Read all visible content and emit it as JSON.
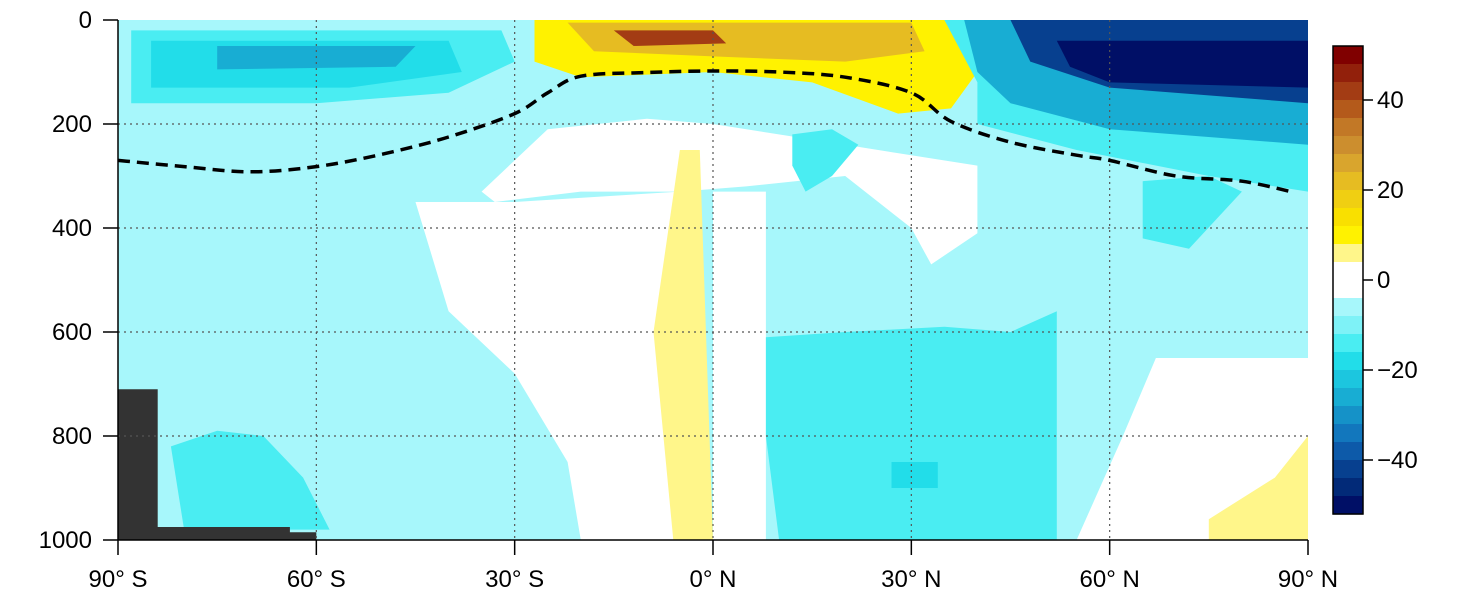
{
  "chart_data": {
    "type": "heatmap",
    "title": "",
    "xlabel": "",
    "ylabel": "",
    "x_axis": {
      "ticks": [
        -90,
        -60,
        -30,
        0,
        30,
        60,
        90
      ],
      "tick_labels": [
        "90° S",
        "60° S",
        "30° S",
        "0° N",
        "30° N",
        "60° N",
        "90° N"
      ],
      "range": [
        -90,
        90
      ]
    },
    "y_axis": {
      "ticks": [
        0,
        200,
        400,
        600,
        800,
        1000
      ],
      "tick_labels": [
        "0",
        "200",
        "400",
        "600",
        "800",
        "1000"
      ],
      "range": [
        0,
        1000
      ],
      "inverted": true
    },
    "colorbar": {
      "range": [
        -52,
        52
      ],
      "ticks": [
        40,
        20,
        0,
        -20,
        -40
      ],
      "tick_labels": [
        "40",
        "20",
        "0",
        "−20",
        "−40"
      ],
      "levels": [
        {
          "min": 48,
          "max": 52,
          "color": "#800000"
        },
        {
          "min": 44,
          "max": 48,
          "color": "#92200b"
        },
        {
          "min": 40,
          "max": 44,
          "color": "#a33c14"
        },
        {
          "min": 36,
          "max": 40,
          "color": "#b45a1b"
        },
        {
          "min": 32,
          "max": 36,
          "color": "#c27826"
        },
        {
          "min": 28,
          "max": 32,
          "color": "#cc8e2e"
        },
        {
          "min": 24,
          "max": 28,
          "color": "#d9a52d"
        },
        {
          "min": 20,
          "max": 24,
          "color": "#e6bc22"
        },
        {
          "min": 16,
          "max": 20,
          "color": "#f0cf12"
        },
        {
          "min": 12,
          "max": 16,
          "color": "#f9e000"
        },
        {
          "min": 8,
          "max": 12,
          "color": "#fff200"
        },
        {
          "min": 4,
          "max": 8,
          "color": "#fff68a"
        },
        {
          "min": 0,
          "max": 4,
          "color": "#ffffff"
        },
        {
          "min": -4,
          "max": 0,
          "color": "#ffffff"
        },
        {
          "min": -8,
          "max": -4,
          "color": "#a7f7fb"
        },
        {
          "min": -12,
          "max": -8,
          "color": "#7ef2f7"
        },
        {
          "min": -16,
          "max": -12,
          "color": "#4aedf2"
        },
        {
          "min": -20,
          "max": -16,
          "color": "#22dde9"
        },
        {
          "min": -24,
          "max": -20,
          "color": "#1cc6df"
        },
        {
          "min": -28,
          "max": -24,
          "color": "#18add3"
        },
        {
          "min": -32,
          "max": -28,
          "color": "#1592c8"
        },
        {
          "min": -36,
          "max": -32,
          "color": "#1277bd"
        },
        {
          "min": -40,
          "max": -36,
          "color": "#0d5aa9"
        },
        {
          "min": -44,
          "max": -40,
          "color": "#07408f"
        },
        {
          "min": -48,
          "max": -44,
          "color": "#022a78"
        },
        {
          "min": -52,
          "max": -48,
          "color": "#000f66"
        }
      ]
    },
    "grid": true,
    "land_mask_color": "#333333",
    "dashed_contour": {
      "style": "dashed",
      "color": "#000000",
      "points": [
        [
          -90,
          270
        ],
        [
          -80,
          282
        ],
        [
          -70,
          292
        ],
        [
          -60,
          282
        ],
        [
          -50,
          258
        ],
        [
          -40,
          225
        ],
        [
          -30,
          180
        ],
        [
          -25,
          140
        ],
        [
          -20,
          108
        ],
        [
          -10,
          101
        ],
        [
          0,
          98
        ],
        [
          10,
          100
        ],
        [
          20,
          110
        ],
        [
          30,
          140
        ],
        [
          36,
          195
        ],
        [
          45,
          235
        ],
        [
          55,
          260
        ],
        [
          60,
          270
        ],
        [
          70,
          300
        ],
        [
          80,
          310
        ],
        [
          88,
          332
        ]
      ]
    },
    "anomaly_field": {
      "description_units": "colorbar units",
      "regions": [
        {
          "value": -6,
          "polygon": [
            [
              -90,
              0
            ],
            [
              90,
              0
            ],
            [
              90,
              1000
            ],
            [
              -90,
              1000
            ]
          ]
        },
        {
          "value": 0,
          "polygon": [
            [
              -33,
              350
            ],
            [
              -20,
              330
            ],
            [
              -5,
              330
            ],
            [
              5,
              320
            ],
            [
              20,
              300
            ],
            [
              30,
              400
            ],
            [
              33,
              470
            ],
            [
              40,
              410
            ],
            [
              40,
              280
            ],
            [
              20,
              240
            ],
            [
              0,
              200
            ],
            [
              -10,
              190
            ],
            [
              -25,
              210
            ],
            [
              -35,
              330
            ]
          ]
        },
        {
          "value": 0,
          "polygon": [
            [
              -30,
              350
            ],
            [
              -5,
              330
            ],
            [
              0,
              1000
            ],
            [
              -20,
              1000
            ],
            [
              -22,
              850
            ],
            [
              -30,
              680
            ],
            [
              -40,
              560
            ],
            [
              -45,
              350
            ]
          ]
        },
        {
          "value": 0,
          "polygon": [
            [
              0,
              330
            ],
            [
              8,
              330
            ],
            [
              8,
              1000
            ],
            [
              0,
              1000
            ]
          ]
        },
        {
          "value": 0,
          "polygon": [
            [
              67,
              650
            ],
            [
              90,
              650
            ],
            [
              90,
              1000
            ],
            [
              55,
              1000
            ],
            [
              62,
              800
            ]
          ]
        },
        {
          "value": 6,
          "polygon": [
            [
              -5,
              250
            ],
            [
              -2,
              250
            ],
            [
              0,
              1000
            ],
            [
              -6,
              1000
            ],
            [
              -9,
              600
            ]
          ]
        },
        {
          "value": 6,
          "polygon": [
            [
              75,
              960
            ],
            [
              85,
              880
            ],
            [
              90,
              800
            ],
            [
              90,
              1000
            ],
            [
              75,
              1000
            ]
          ]
        },
        {
          "value": -14,
          "polygon": [
            [
              8,
              610
            ],
            [
              20,
              600
            ],
            [
              35,
              590
            ],
            [
              45,
              600
            ],
            [
              52,
              560
            ],
            [
              52,
              1000
            ],
            [
              10,
              1000
            ],
            [
              8,
              800
            ]
          ]
        },
        {
          "value": -14,
          "polygon": [
            [
              -82,
              820
            ],
            [
              -75,
              790
            ],
            [
              -68,
              800
            ],
            [
              -62,
              880
            ],
            [
              -58,
              980
            ],
            [
              -80,
              980
            ]
          ]
        },
        {
          "value": -14,
          "polygon": [
            [
              12,
              220
            ],
            [
              18,
              210
            ],
            [
              22,
              240
            ],
            [
              18,
              300
            ],
            [
              14,
              330
            ],
            [
              12,
              280
            ]
          ]
        },
        {
          "value": -14,
          "polygon": [
            [
              65,
              310
            ],
            [
              75,
              300
            ],
            [
              80,
              330
            ],
            [
              72,
              440
            ],
            [
              65,
              420
            ]
          ]
        },
        {
          "value": -20,
          "polygon": [
            [
              27,
              850
            ],
            [
              34,
              850
            ],
            [
              34,
              900
            ],
            [
              27,
              900
            ]
          ]
        },
        {
          "value": -6,
          "polygon": [
            [
              -90,
              0
            ],
            [
              -30,
              0
            ],
            [
              -25,
              80
            ],
            [
              -30,
              140
            ],
            [
              -40,
              180
            ],
            [
              -60,
              200
            ],
            [
              -90,
              200
            ]
          ]
        },
        {
          "value": -14,
          "polygon": [
            [
              -88,
              20
            ],
            [
              -32,
              20
            ],
            [
              -30,
              80
            ],
            [
              -40,
              140
            ],
            [
              -60,
              160
            ],
            [
              -88,
              160
            ]
          ]
        },
        {
          "value": -20,
          "polygon": [
            [
              -85,
              40
            ],
            [
              -40,
              40
            ],
            [
              -38,
              100
            ],
            [
              -55,
              130
            ],
            [
              -85,
              130
            ]
          ]
        },
        {
          "value": -26,
          "polygon": [
            [
              -75,
              50
            ],
            [
              -45,
              50
            ],
            [
              -48,
              90
            ],
            [
              -75,
              95
            ]
          ]
        },
        {
          "value": 10,
          "polygon": [
            [
              -27,
              0
            ],
            [
              35,
              0
            ],
            [
              40,
              100
            ],
            [
              36,
              170
            ],
            [
              28,
              180
            ],
            [
              15,
              120
            ],
            [
              0,
              100
            ],
            [
              -20,
              110
            ],
            [
              -27,
              80
            ]
          ]
        },
        {
          "value": 20,
          "polygon": [
            [
              -22,
              5
            ],
            [
              30,
              5
            ],
            [
              32,
              60
            ],
            [
              20,
              80
            ],
            [
              0,
              70
            ],
            [
              -18,
              60
            ]
          ]
        },
        {
          "value": 40,
          "polygon": [
            [
              -15,
              20
            ],
            [
              0,
              20
            ],
            [
              2,
              45
            ],
            [
              -12,
              50
            ]
          ]
        },
        {
          "value": -14,
          "polygon": [
            [
              35,
              0
            ],
            [
              90,
              0
            ],
            [
              90,
              330
            ],
            [
              75,
              300
            ],
            [
              55,
              250
            ],
            [
              40,
              200
            ],
            [
              40,
              120
            ]
          ]
        },
        {
          "value": -28,
          "polygon": [
            [
              38,
              0
            ],
            [
              90,
              0
            ],
            [
              90,
              240
            ],
            [
              60,
              210
            ],
            [
              45,
              160
            ],
            [
              40,
              100
            ]
          ]
        },
        {
          "value": -44,
          "polygon": [
            [
              45,
              0
            ],
            [
              90,
              0
            ],
            [
              90,
              160
            ],
            [
              60,
              130
            ],
            [
              48,
              80
            ]
          ]
        },
        {
          "value": -50,
          "polygon": [
            [
              52,
              40
            ],
            [
              90,
              40
            ],
            [
              90,
              130
            ],
            [
              60,
              120
            ],
            [
              54,
              90
            ]
          ]
        }
      ],
      "land_mask": [
        [
          [
            -90,
            710
          ],
          [
            -84,
            710
          ],
          [
            -84,
            975
          ],
          [
            -64,
            975
          ],
          [
            -64,
            985
          ],
          [
            -60,
            985
          ],
          [
            -60,
            1000
          ],
          [
            -90,
            1000
          ]
        ]
      ]
    }
  }
}
